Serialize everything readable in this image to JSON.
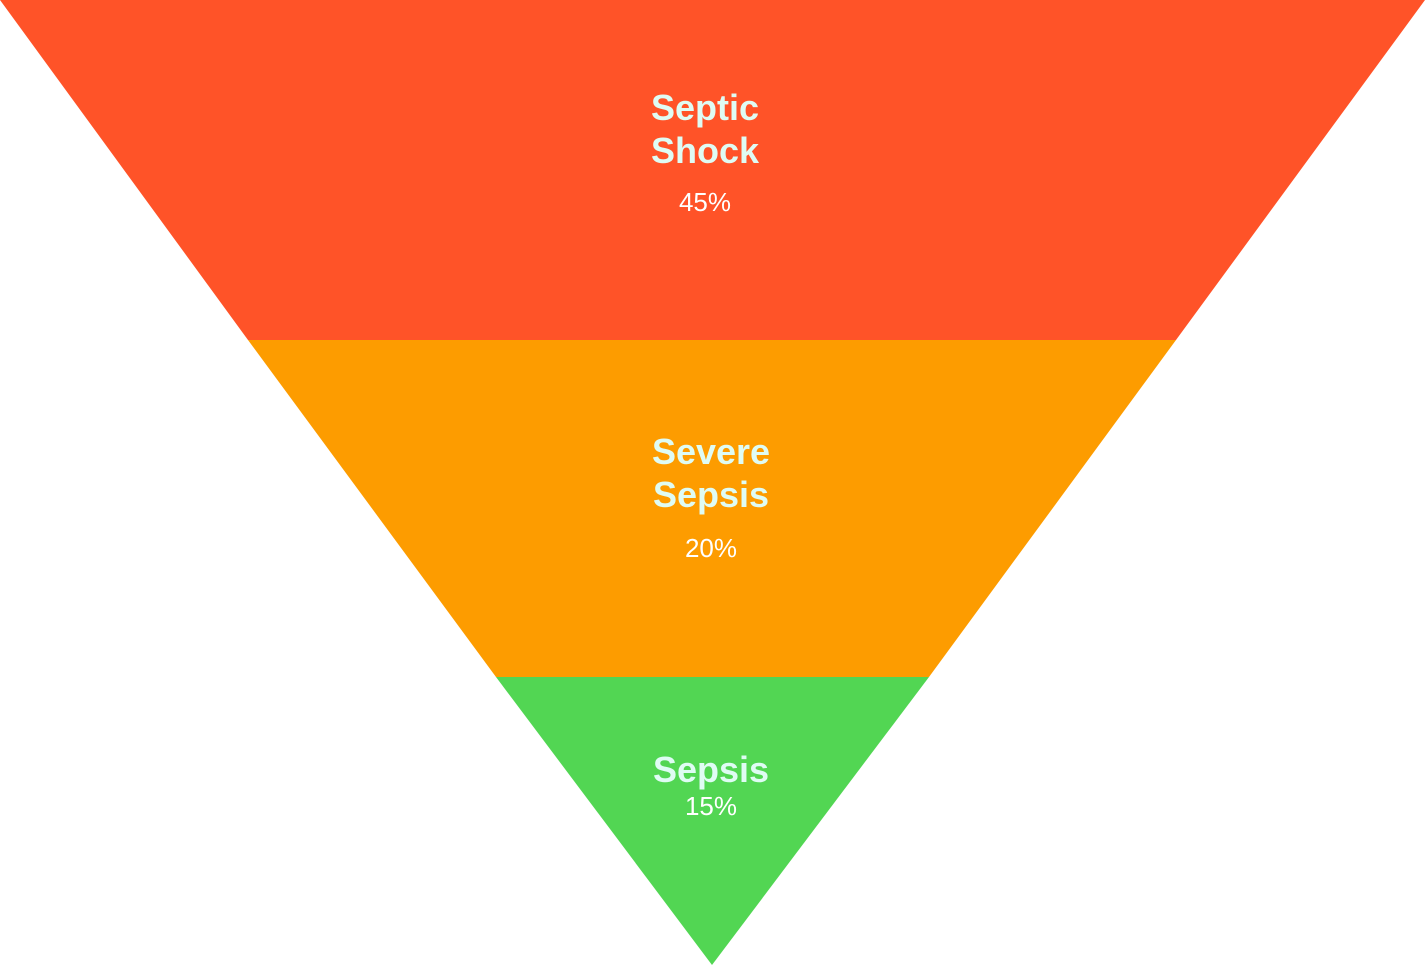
{
  "stages": [
    {
      "name": "Septic\nShock",
      "value": "45%",
      "color": "#ff5328"
    },
    {
      "name": "Severe\nSepsis",
      "value": "20%",
      "color": "#fd9c00"
    },
    {
      "name": "Sepsis",
      "value": "15%",
      "color": "#52d653"
    }
  ]
}
